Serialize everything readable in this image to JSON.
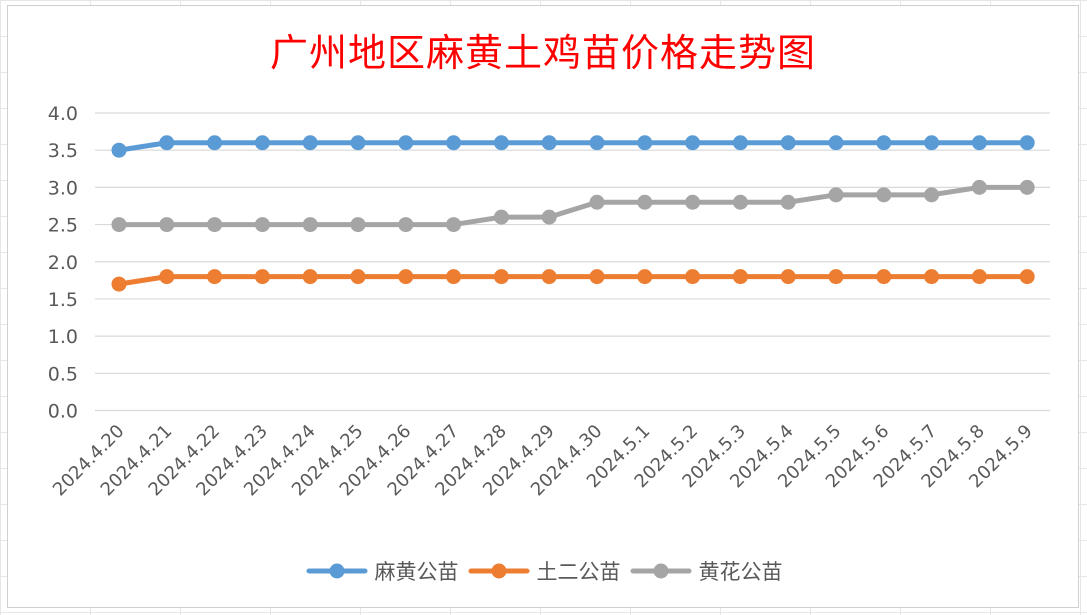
{
  "chart_data": {
    "type": "line",
    "title": "广州地区麻黄土鸡苗价格走势图",
    "xlabel": "",
    "ylabel": "",
    "categories": [
      "2024.4.20",
      "2024.4.21",
      "2024.4.22",
      "2024.4.23",
      "2024.4.24",
      "2024.4.25",
      "2024.4.26",
      "2024.4.27",
      "2024.4.28",
      "2024.4.29",
      "2024.4.30",
      "2024.5.1",
      "2024.5.2",
      "2024.5.3",
      "2024.5.4",
      "2024.5.5",
      "2024.5.6",
      "2024.5.7",
      "2024.5.8",
      "2024.5.9"
    ],
    "ylim": [
      0,
      4.0
    ],
    "yticks": [
      "0.0",
      "0.5",
      "1.0",
      "1.5",
      "2.0",
      "2.5",
      "3.0",
      "3.5",
      "4.0"
    ],
    "grid": true,
    "legend_position": "bottom",
    "series": [
      {
        "name": "麻黄公苗",
        "color": "#5b9bd5",
        "values": [
          3.5,
          3.6,
          3.6,
          3.6,
          3.6,
          3.6,
          3.6,
          3.6,
          3.6,
          3.6,
          3.6,
          3.6,
          3.6,
          3.6,
          3.6,
          3.6,
          3.6,
          3.6,
          3.6,
          3.6
        ]
      },
      {
        "name": "土二公苗",
        "color": "#ed7d31",
        "values": [
          1.7,
          1.8,
          1.8,
          1.8,
          1.8,
          1.8,
          1.8,
          1.8,
          1.8,
          1.8,
          1.8,
          1.8,
          1.8,
          1.8,
          1.8,
          1.8,
          1.8,
          1.8,
          1.8,
          1.8
        ]
      },
      {
        "name": "黄花公苗",
        "color": "#a5a5a5",
        "values": [
          2.5,
          2.5,
          2.5,
          2.5,
          2.5,
          2.5,
          2.5,
          2.5,
          2.6,
          2.6,
          2.8,
          2.8,
          2.8,
          2.8,
          2.8,
          2.9,
          2.9,
          2.9,
          3.0,
          3.0
        ]
      }
    ]
  }
}
